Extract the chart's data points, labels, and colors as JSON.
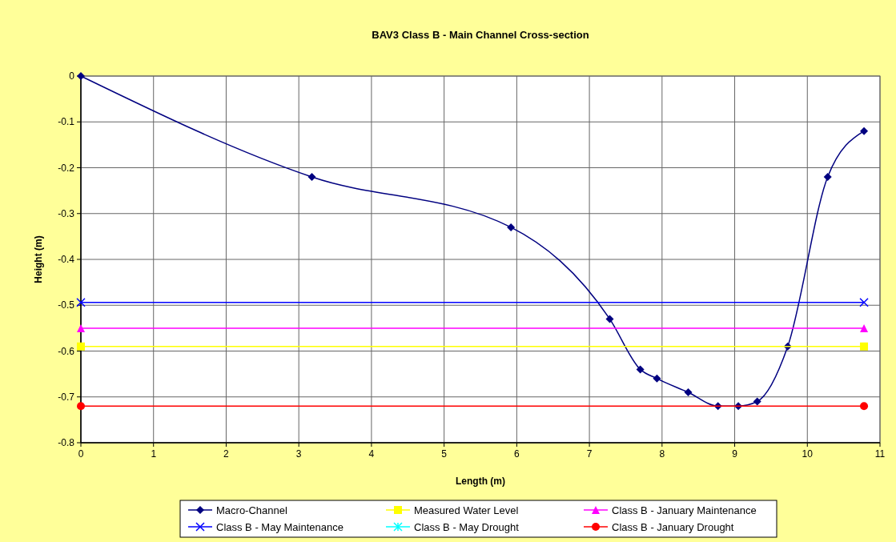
{
  "chart_data": {
    "type": "line",
    "title": "BAV3 Class B - Main Channel Cross-section",
    "xlabel": "Length (m)",
    "ylabel": "Height (m)",
    "xlim": [
      0,
      11
    ],
    "xticks": [
      0,
      1,
      2,
      3,
      4,
      5,
      6,
      7,
      8,
      9,
      10,
      11
    ],
    "ylim": [
      -0.8,
      0
    ],
    "yticks": [
      -0.8,
      -0.7,
      -0.6,
      -0.5,
      -0.4,
      -0.3,
      -0.2,
      -0.1,
      0
    ],
    "grid": true,
    "legend": "bottom",
    "series": [
      {
        "name": "Macro-Channel",
        "color": "#000080",
        "marker": "diamond",
        "x": [
          0,
          3.18,
          5.92,
          7.28,
          7.7,
          7.93,
          8.36,
          8.77,
          9.05,
          9.31,
          9.73,
          10.28,
          10.78
        ],
        "values": [
          0,
          -0.22,
          -0.33,
          -0.53,
          -0.64,
          -0.66,
          -0.69,
          -0.72,
          -0.72,
          -0.71,
          -0.59,
          -0.22,
          -0.12
        ]
      },
      {
        "name": "Measured Water Level",
        "color": "#ffff00",
        "marker": "square",
        "x": [
          0,
          10.78
        ],
        "values": [
          -0.59,
          -0.59
        ]
      },
      {
        "name": "Class B - January Maintenance",
        "color": "#ff00ff",
        "marker": "triangle",
        "x": [
          0,
          10.78
        ],
        "values": [
          -0.55,
          -0.55
        ]
      },
      {
        "name": "Class B - May Maintenance",
        "color": "#0000ff",
        "marker": "cross",
        "x": [
          0,
          10.78
        ],
        "values": [
          -0.494,
          -0.494
        ]
      },
      {
        "name": "Class B - May Drought",
        "color": "#00ffff",
        "marker": "star",
        "values": [
          null,
          null
        ]
      },
      {
        "name": "Class B - January Drought",
        "color": "#ff0000",
        "marker": "circle",
        "x": [
          0,
          10.78
        ],
        "values": [
          -0.72,
          -0.72
        ]
      }
    ]
  }
}
